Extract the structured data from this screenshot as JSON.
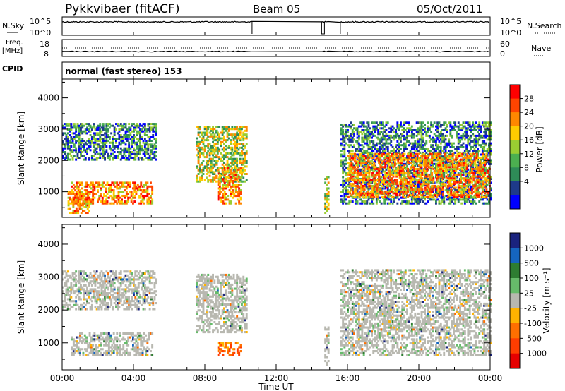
{
  "header": {
    "station": "Pykkvibaer (fitACF)",
    "beam": "Beam 05",
    "date": "05/Oct/2011"
  },
  "strips": {
    "nsky": {
      "label": "N.Sky",
      "left_ticks": [
        "10^5",
        "10^0"
      ],
      "right_ticks": [
        "10^5",
        "10^0"
      ],
      "right_label": "N.Search"
    },
    "freq": {
      "label_line1": "Freq.",
      "label_line2": "[MHz]",
      "left_ticks": [
        "18",
        "8"
      ],
      "right_ticks": [
        "60",
        "0"
      ],
      "right_label": "Nave"
    },
    "cpid": {
      "label": "CPID",
      "text": "normal (fast stereo) 153"
    }
  },
  "colorbars": {
    "power": {
      "label": "Power [dB]",
      "ticks": [
        "28",
        "24",
        "20",
        "16",
        "12",
        "8",
        "4"
      ],
      "colors": [
        "#ff0000",
        "#ff4400",
        "#ff8800",
        "#ffcc00",
        "#9acd32",
        "#4caf50",
        "#2e8b57",
        "#1e3a8a",
        "#0000ff"
      ]
    },
    "velocity": {
      "label": "Velocity [m s⁻¹]",
      "ticks": [
        "1000",
        "500",
        "100",
        "25",
        "-25",
        "-100",
        "-500",
        "-1000"
      ],
      "colors": [
        "#1a237e",
        "#1565c0",
        "#2e7d32",
        "#66bb6a",
        "#b8b8b0",
        "#ffb300",
        "#ff6f00",
        "#ff3d00",
        "#e60000"
      ]
    }
  },
  "chart_data": [
    {
      "type": "heatmap",
      "name": "power",
      "ylabel": "Slant Range [km]",
      "xlabel": "",
      "x_ticks": [
        "00:00",
        "04:00",
        "08:00",
        "12:00",
        "16:00",
        "20:00",
        "00:00"
      ],
      "y_ticks": [
        "1000",
        "2000",
        "3000",
        "4000"
      ],
      "xlim": [
        0,
        24
      ],
      "ylim": [
        180,
        4600
      ],
      "colorbar": "Power [dB]",
      "echo_regions": [
        {
          "t0": 0.0,
          "t1": 5.3,
          "r0": 2000,
          "r1": 3200,
          "level": "low"
        },
        {
          "t0": 0.3,
          "t1": 1.5,
          "r0": 300,
          "r1": 1000,
          "level": "high"
        },
        {
          "t0": 0.5,
          "t1": 5.0,
          "r0": 600,
          "r1": 1300,
          "level": "high"
        },
        {
          "t0": 7.5,
          "t1": 10.3,
          "r0": 1300,
          "r1": 3100,
          "level": "mid"
        },
        {
          "t0": 8.7,
          "t1": 10.0,
          "r0": 600,
          "r1": 1800,
          "level": "high"
        },
        {
          "t0": 14.7,
          "t1": 14.9,
          "r0": 300,
          "r1": 1500,
          "level": "mid"
        },
        {
          "t0": 15.6,
          "t1": 24.0,
          "r0": 600,
          "r1": 3200,
          "level": "low"
        },
        {
          "t0": 16.0,
          "t1": 24.0,
          "r0": 800,
          "r1": 2200,
          "level": "high"
        }
      ]
    },
    {
      "type": "heatmap",
      "name": "velocity",
      "ylabel": "Slant Range [km]",
      "xlabel": "Time UT",
      "x_ticks": [
        "00:00",
        "04:00",
        "08:00",
        "12:00",
        "16:00",
        "20:00",
        "00:00"
      ],
      "y_ticks": [
        "1000",
        "2000",
        "3000",
        "4000"
      ],
      "xlim": [
        0,
        24
      ],
      "ylim": [
        180,
        4600
      ],
      "colorbar": "Velocity [m s⁻¹]",
      "echo_regions": [
        {
          "t0": 0.0,
          "t1": 5.3,
          "r0": 2000,
          "r1": 3200,
          "level": "ground"
        },
        {
          "t0": 0.5,
          "t1": 5.0,
          "r0": 600,
          "r1": 1300,
          "level": "ground"
        },
        {
          "t0": 7.5,
          "t1": 10.3,
          "r0": 1300,
          "r1": 3100,
          "level": "ground"
        },
        {
          "t0": 8.7,
          "t1": 10.0,
          "r0": 600,
          "r1": 1000,
          "level": "away"
        },
        {
          "t0": 14.7,
          "t1": 14.9,
          "r0": 300,
          "r1": 1500,
          "level": "ground"
        },
        {
          "t0": 15.6,
          "t1": 24.0,
          "r0": 600,
          "r1": 3200,
          "level": "ground"
        }
      ]
    }
  ]
}
